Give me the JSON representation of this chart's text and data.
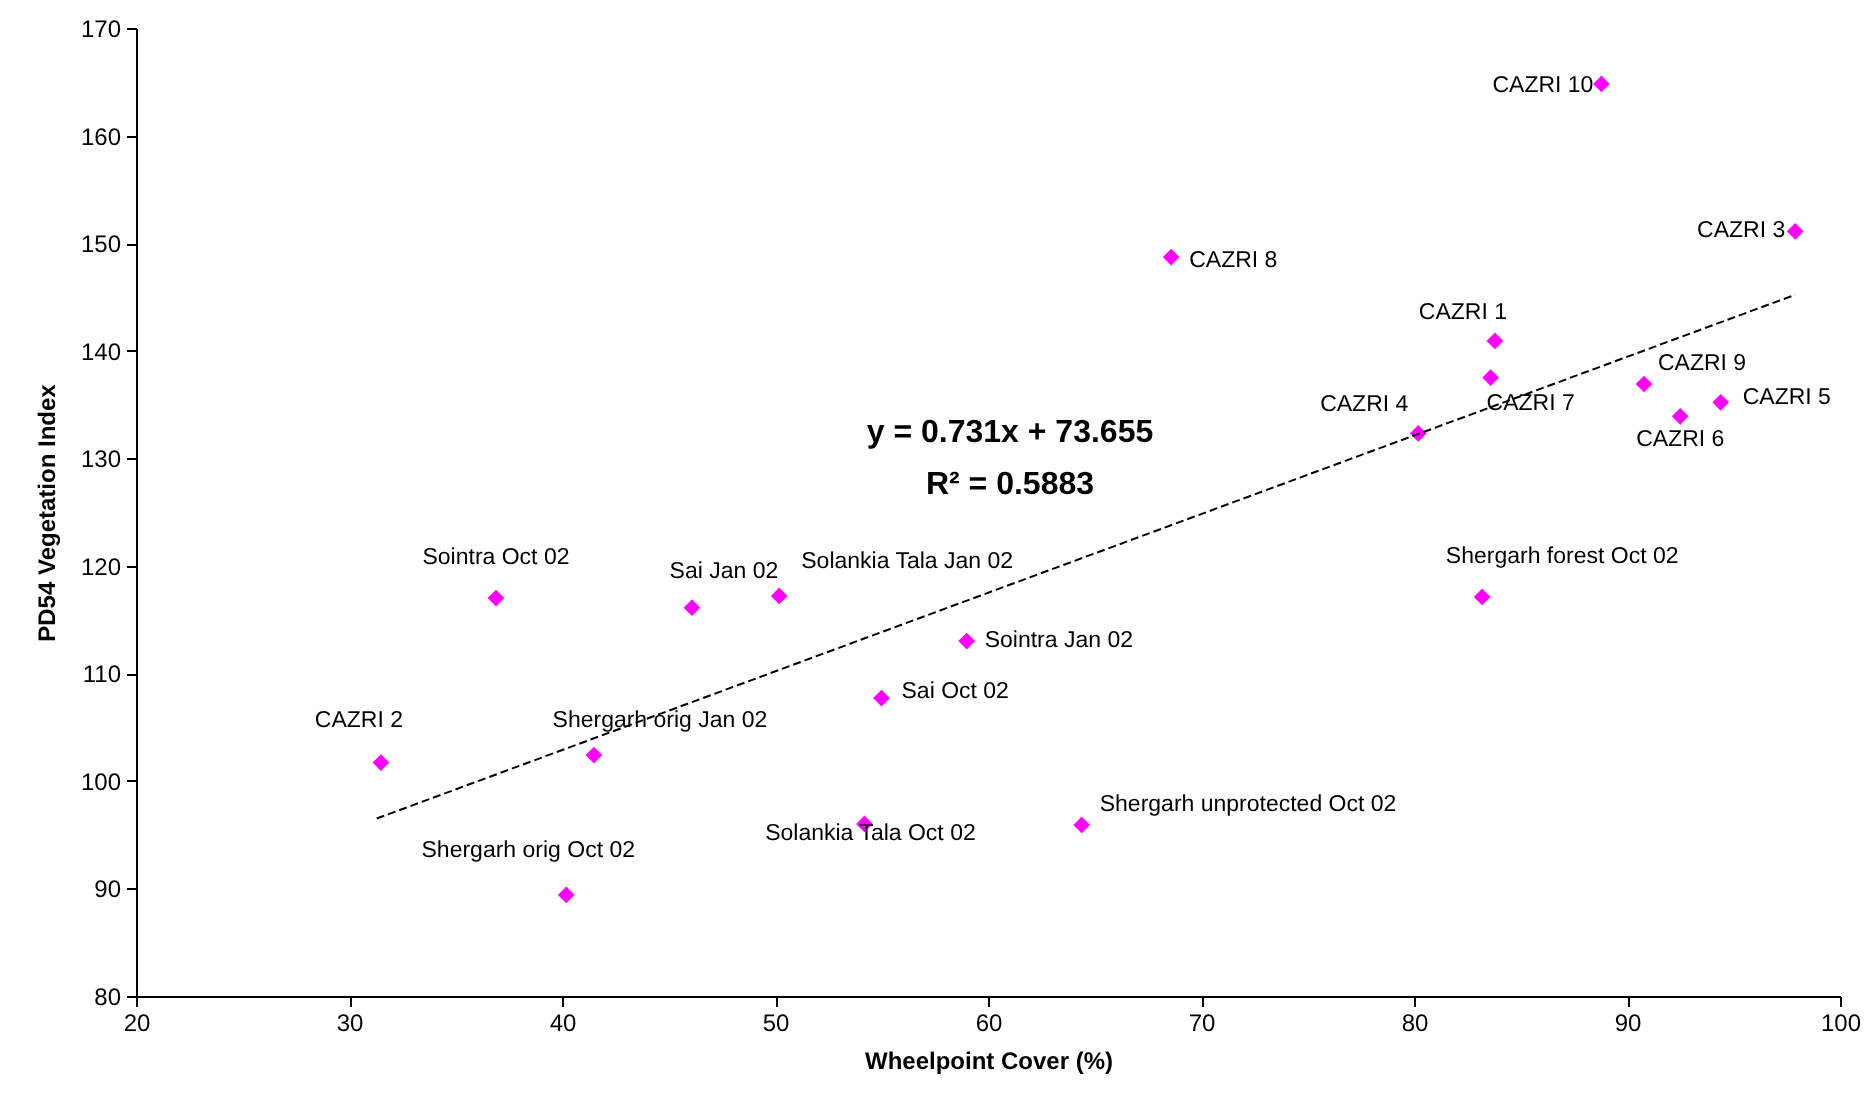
{
  "chart_data": {
    "type": "scatter",
    "xlabel": "Wheelpoint Cover (%)",
    "ylabel": "PD54 Vegetation Index",
    "xlim": [
      20,
      100
    ],
    "xticks": [
      20,
      30,
      40,
      50,
      60,
      70,
      80,
      90,
      100
    ],
    "ylim": [
      80,
      170
    ],
    "yticks": [
      80,
      90,
      100,
      110,
      120,
      130,
      140,
      150,
      160,
      170
    ],
    "grid": false,
    "marker": "diamond",
    "annotations": [
      "y = 0.731x + 73.655",
      "R² = 0.5883"
    ],
    "series": [
      {
        "color": "#ff00ff",
        "x": [
          36.9,
          46.1,
          31.5,
          41.5,
          40.2,
          50.2,
          59.0,
          55.0,
          54.2,
          64.4,
          88.8,
          97.9,
          68.6,
          83.8,
          83.6,
          80.2,
          90.8,
          92.5,
          94.4,
          83.2
        ],
        "values": [
          117.0,
          116.1,
          101.7,
          102.4,
          89.4,
          117.2,
          113.0,
          107.7,
          96.0,
          95.9,
          164.8,
          151.1,
          148.7,
          140.9,
          137.5,
          132.3,
          136.9,
          133.9,
          135.2,
          117.1
        ],
        "value_labels": [
          "Sointra Oct 02",
          "Sai Jan 02",
          "CAZRI 2",
          "Shergarh orig Jan 02",
          "Shergarh orig Oct 02",
          "Solankia Tala Jan 02",
          "Sointra Jan 02",
          "Sai Oct 02",
          "Solankia Tala Oct 02",
          "Shergarh unprotected Oct 02",
          "CAZRI 10",
          "CAZRI 3",
          "CAZRI 8",
          "CAZRI 1",
          "CAZRI 7",
          "CAZRI 4",
          "CAZRI 9",
          "CAZRI 6",
          "CAZRI 5",
          "Shergarh forest Oct 02"
        ]
      },
      {
        "type": "line",
        "color": "#000000",
        "line_style": "dashed",
        "marker": "none",
        "x": [
          31.3,
          97.9
        ],
        "values": [
          96.5,
          145.2
        ]
      }
    ]
  }
}
